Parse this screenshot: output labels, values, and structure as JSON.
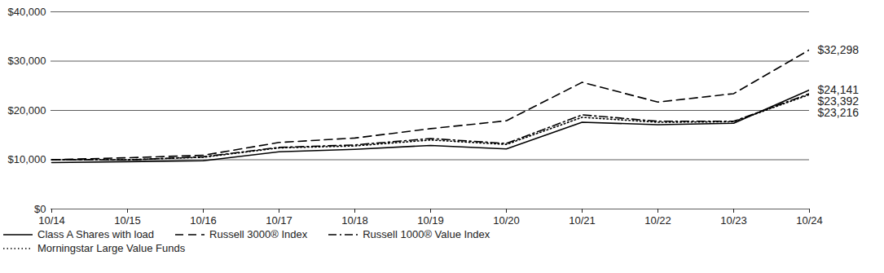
{
  "chart_data": {
    "type": "line",
    "categories": [
      "10/14",
      "10/15",
      "10/16",
      "10/17",
      "10/18",
      "10/19",
      "10/20",
      "10/21",
      "10/22",
      "10/23",
      "10/24"
    ],
    "series": [
      {
        "name": "Class A Shares with load",
        "color": "#000000",
        "line_style": "solid",
        "values": [
          9425,
          9600,
          9800,
          11600,
          12100,
          12900,
          12200,
          17600,
          17100,
          17400,
          24141
        ],
        "value_labels": [
          null,
          null,
          null,
          null,
          null,
          null,
          null,
          null,
          null,
          null,
          "$24,141"
        ]
      },
      {
        "name": "Russell 3000® Index",
        "color": "#000000",
        "line_style": "dashed",
        "values": [
          10000,
          10400,
          10900,
          13500,
          14400,
          16300,
          17900,
          25700,
          21700,
          23400,
          32298
        ],
        "value_labels": [
          null,
          null,
          null,
          null,
          null,
          null,
          null,
          null,
          null,
          null,
          "$32,298"
        ]
      },
      {
        "name": "Russell 1000® Value Index",
        "color": "#000000",
        "line_style": "dashdot",
        "values": [
          10000,
          9950,
          10600,
          12500,
          13000,
          14300,
          13300,
          19100,
          17800,
          17800,
          23392
        ],
        "value_labels": [
          null,
          null,
          null,
          null,
          null,
          null,
          null,
          null,
          null,
          null,
          "$23,392"
        ]
      },
      {
        "name": "Morningstar Large Value Funds",
        "color": "#000000",
        "line_style": "dotted",
        "values": [
          10000,
          10000,
          10500,
          12400,
          12800,
          14000,
          13100,
          18600,
          17600,
          17700,
          23216
        ],
        "value_labels": [
          null,
          null,
          null,
          null,
          null,
          null,
          null,
          null,
          null,
          null,
          "$23,216"
        ]
      }
    ],
    "ylim": [
      0,
      40000
    ],
    "yticks": [
      {
        "value": 0,
        "label": "$0"
      },
      {
        "value": 10000,
        "label": "$10,000"
      },
      {
        "value": 20000,
        "label": "$20,000"
      },
      {
        "value": 30000,
        "label": "$30,000"
      },
      {
        "value": 40000,
        "label": "$40,000"
      }
    ],
    "grid": true,
    "legend": "bottom",
    "data_labels": true
  }
}
